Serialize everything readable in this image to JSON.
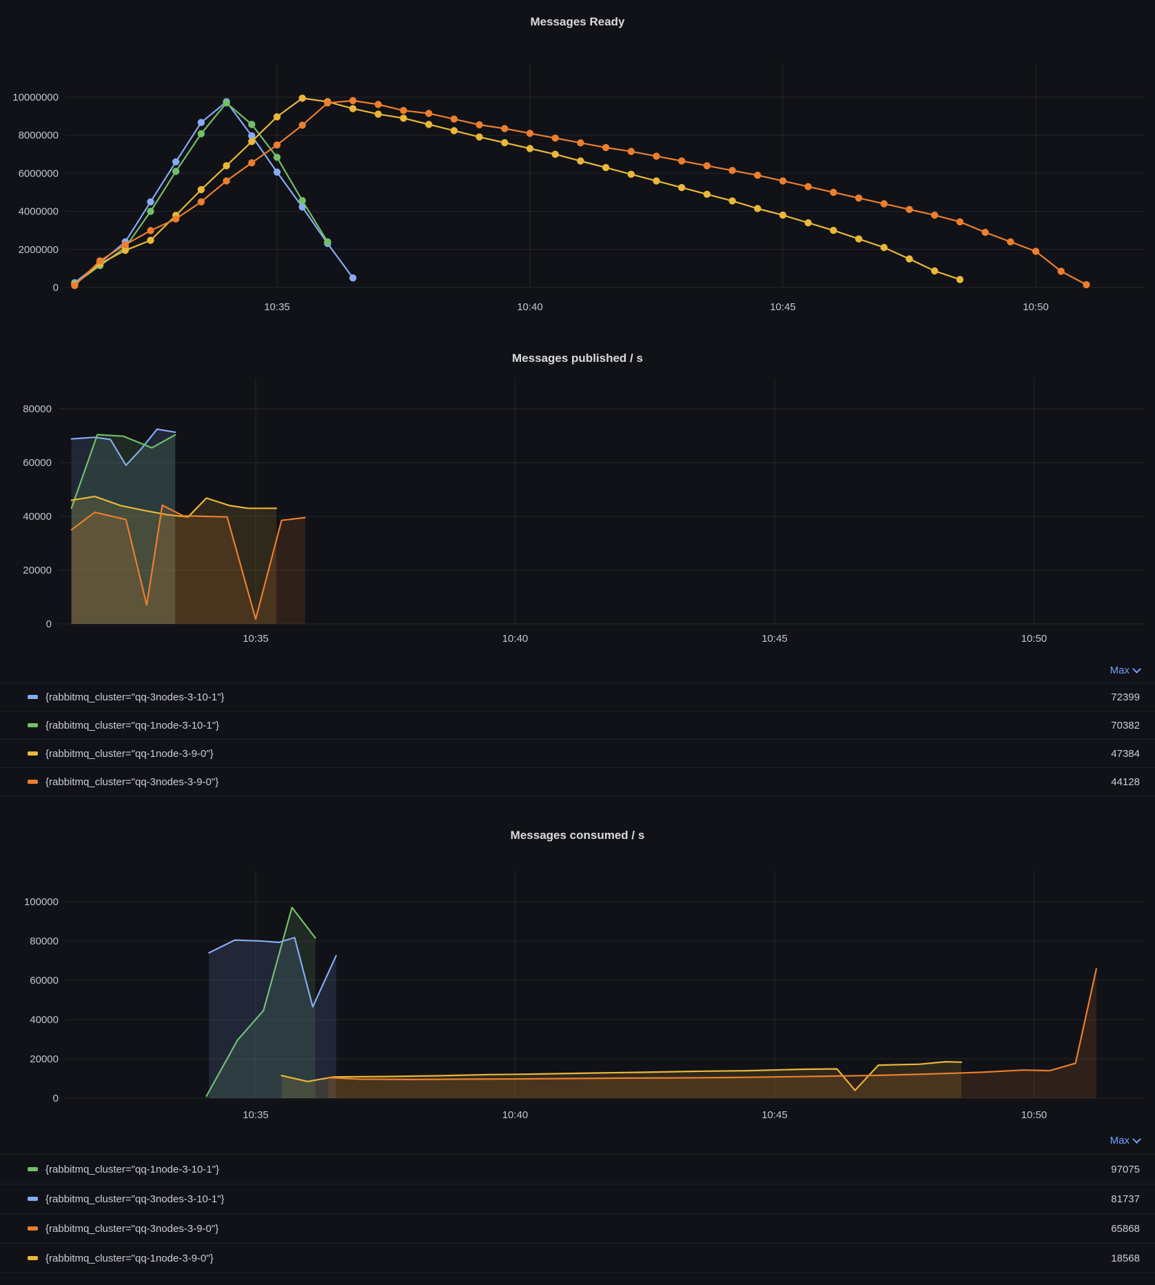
{
  "colors": {
    "background": "#111217",
    "blue": "#86ABF5",
    "green": "#73BF69",
    "yellow": "#EAB839",
    "orange": "#EC7E2E",
    "grid": "rgba(204,204,220,0.10)",
    "axis_text": "#C4C6CF",
    "title_text": "#D9DADE",
    "legend_text": "#CCCCDC",
    "link": "#6E9FFF"
  },
  "chart_data": [
    {
      "type": "line",
      "title": "Messages Ready",
      "x_base": "10:30",
      "x_unit": "minutes_after_10:30",
      "x_ticks": [
        {
          "t": 5,
          "label": "10:35"
        },
        {
          "t": 10,
          "label": "10:40"
        },
        {
          "t": 15,
          "label": "10:45"
        },
        {
          "t": 20,
          "label": "10:50"
        }
      ],
      "y_ticks": [
        0,
        2000000,
        4000000,
        6000000,
        8000000,
        10000000
      ],
      "ylim": [
        0,
        10000000
      ],
      "grid": true,
      "legend_position": "none",
      "show_points": true,
      "fill_opacity": 0,
      "series": [
        {
          "id": "qq-3nodes-3-10-1",
          "color_key": "blue",
          "points": [
            [
              1,
              250000
            ],
            [
              1.5,
              1300000
            ],
            [
              2,
              2400000
            ],
            [
              2.5,
              4500000
            ],
            [
              3,
              6600000
            ],
            [
              3.5,
              8670000
            ],
            [
              4,
              9760000
            ],
            [
              4.5,
              7970000
            ],
            [
              5,
              6060000
            ],
            [
              5.5,
              4230000
            ],
            [
              6,
              2310000
            ],
            [
              6.5,
              500000
            ]
          ]
        },
        {
          "id": "qq-1node-3-10-1",
          "color_key": "green",
          "points": [
            [
              1,
              200000
            ],
            [
              1.5,
              1150000
            ],
            [
              2,
              2100000
            ],
            [
              2.5,
              4000000
            ],
            [
              3,
              6100000
            ],
            [
              3.5,
              8080000
            ],
            [
              4,
              9700000
            ],
            [
              4.5,
              8570000
            ],
            [
              5,
              6840000
            ],
            [
              5.5,
              4560000
            ],
            [
              6,
              2400000
            ]
          ]
        },
        {
          "id": "qq-1node-3-9-0",
          "color_key": "yellow",
          "points": [
            [
              1,
              150000
            ],
            [
              1.5,
              1250000
            ],
            [
              2,
              1950000
            ],
            [
              2.5,
              2480000
            ],
            [
              3,
              3790000
            ],
            [
              3.5,
              5140000
            ],
            [
              4,
              6400000
            ],
            [
              4.5,
              7670000
            ],
            [
              5,
              8970000
            ],
            [
              5.5,
              9950000
            ],
            [
              6,
              9760000
            ],
            [
              6.5,
              9400000
            ],
            [
              7,
              9110000
            ],
            [
              7.5,
              8900000
            ],
            [
              8,
              8570000
            ],
            [
              8.5,
              8240000
            ],
            [
              9,
              7910000
            ],
            [
              9.5,
              7610000
            ],
            [
              10,
              7300000
            ],
            [
              10.5,
              7000000
            ],
            [
              11,
              6650000
            ],
            [
              11.5,
              6300000
            ],
            [
              12,
              5950000
            ],
            [
              12.5,
              5600000
            ],
            [
              13,
              5250000
            ],
            [
              13.5,
              4900000
            ],
            [
              14,
              4550000
            ],
            [
              14.5,
              4150000
            ],
            [
              15,
              3800000
            ],
            [
              15.5,
              3400000
            ],
            [
              16,
              3000000
            ],
            [
              16.5,
              2550000
            ],
            [
              17,
              2100000
            ],
            [
              17.5,
              1500000
            ],
            [
              18,
              870000
            ],
            [
              18.5,
              420000
            ]
          ]
        },
        {
          "id": "qq-3nodes-3-9-0",
          "color_key": "orange",
          "points": [
            [
              1,
              100000
            ],
            [
              1.5,
              1400000
            ],
            [
              2,
              2250000
            ],
            [
              2.5,
              2990000
            ],
            [
              3,
              3600000
            ],
            [
              3.5,
              4500000
            ],
            [
              4,
              5600000
            ],
            [
              4.5,
              6550000
            ],
            [
              5,
              7490000
            ],
            [
              5.5,
              8530000
            ],
            [
              6,
              9700000
            ],
            [
              6.5,
              9820000
            ],
            [
              7,
              9620000
            ],
            [
              7.5,
              9300000
            ],
            [
              8,
              9150000
            ],
            [
              8.5,
              8850000
            ],
            [
              9,
              8550000
            ],
            [
              9.5,
              8350000
            ],
            [
              10,
              8100000
            ],
            [
              10.5,
              7850000
            ],
            [
              11,
              7600000
            ],
            [
              11.5,
              7350000
            ],
            [
              12,
              7150000
            ],
            [
              12.5,
              6900000
            ],
            [
              13,
              6650000
            ],
            [
              13.5,
              6400000
            ],
            [
              14,
              6150000
            ],
            [
              14.5,
              5900000
            ],
            [
              15,
              5600000
            ],
            [
              15.5,
              5300000
            ],
            [
              16,
              5000000
            ],
            [
              16.5,
              4700000
            ],
            [
              17,
              4400000
            ],
            [
              17.5,
              4100000
            ],
            [
              18,
              3800000
            ],
            [
              18.5,
              3450000
            ],
            [
              19,
              2900000
            ],
            [
              19.5,
              2400000
            ],
            [
              20,
              1900000
            ],
            [
              20.5,
              850000
            ],
            [
              21,
              150000
            ]
          ]
        }
      ]
    },
    {
      "type": "area",
      "title": "Messages published / s",
      "x_base": "10:30",
      "x_unit": "minutes_after_10:30",
      "x_ticks": [
        {
          "t": 5,
          "label": "10:35"
        },
        {
          "t": 10,
          "label": "10:40"
        },
        {
          "t": 15,
          "label": "10:45"
        },
        {
          "t": 20,
          "label": "10:50"
        }
      ],
      "y_ticks": [
        0,
        20000,
        40000,
        60000,
        80000
      ],
      "ylim": [
        0,
        80000
      ],
      "grid": true,
      "legend_position": "bottom-table",
      "show_points": false,
      "fill_opacity": 0.14,
      "series": [
        {
          "id": "qq-3nodes-3-10-1",
          "color_key": "blue",
          "points": [
            [
              1.45,
              68800
            ],
            [
              1.9,
              69400
            ],
            [
              2.2,
              68600
            ],
            [
              2.5,
              59000
            ],
            [
              2.8,
              65200
            ],
            [
              3.1,
              72399
            ],
            [
              3.45,
              71300
            ]
          ]
        },
        {
          "id": "qq-1node-3-10-1",
          "color_key": "green",
          "points": [
            [
              1.45,
              43000
            ],
            [
              1.95,
              70382
            ],
            [
              2.45,
              69800
            ],
            [
              3.0,
              65500
            ],
            [
              3.45,
              70300
            ]
          ]
        },
        {
          "id": "qq-1node-3-9-0",
          "color_key": "yellow",
          "points": [
            [
              1.45,
              46000
            ],
            [
              1.9,
              47384
            ],
            [
              2.4,
              44000
            ],
            [
              2.9,
              42000
            ],
            [
              3.3,
              40600
            ],
            [
              3.7,
              39800
            ],
            [
              4.05,
              46800
            ],
            [
              4.5,
              44000
            ],
            [
              4.85,
              43000
            ],
            [
              5.4,
              43000
            ]
          ]
        },
        {
          "id": "qq-3nodes-3-9-0",
          "color_key": "orange",
          "points": [
            [
              1.45,
              35000
            ],
            [
              1.9,
              41500
            ],
            [
              2.5,
              38800
            ],
            [
              2.9,
              7000
            ],
            [
              3.2,
              44128
            ],
            [
              3.6,
              40200
            ],
            [
              4.0,
              40000
            ],
            [
              4.45,
              39800
            ],
            [
              5.0,
              1800
            ],
            [
              5.5,
              38500
            ],
            [
              5.95,
              39500
            ]
          ]
        }
      ]
    },
    {
      "type": "area",
      "title": "Messages consumed / s",
      "x_base": "10:30",
      "x_unit": "minutes_after_10:30",
      "x_ticks": [
        {
          "t": 5,
          "label": "10:35"
        },
        {
          "t": 10,
          "label": "10:40"
        },
        {
          "t": 15,
          "label": "10:45"
        },
        {
          "t": 20,
          "label": "10:50"
        }
      ],
      "y_ticks": [
        0,
        20000,
        40000,
        60000,
        80000,
        100000
      ],
      "ylim": [
        0,
        100000
      ],
      "grid": true,
      "legend_position": "bottom-table",
      "show_points": false,
      "fill_opacity": 0.14,
      "series": [
        {
          "id": "qq-1node-3-10-1",
          "color_key": "green",
          "points": [
            [
              4.05,
              1000
            ],
            [
              4.65,
              29500
            ],
            [
              5.15,
              44600
            ],
            [
              5.7,
              97075
            ],
            [
              6.15,
              81500
            ]
          ]
        },
        {
          "id": "qq-3nodes-3-10-1",
          "color_key": "blue",
          "points": [
            [
              4.1,
              74000
            ],
            [
              4.6,
              80500
            ],
            [
              5.1,
              80000
            ],
            [
              5.45,
              79300
            ],
            [
              5.75,
              81737
            ],
            [
              6.1,
              46500
            ],
            [
              6.55,
              72500
            ]
          ]
        },
        {
          "id": "qq-1node-3-9-0",
          "color_key": "yellow",
          "points": [
            [
              5.5,
              11500
            ],
            [
              6.0,
              8500
            ],
            [
              6.5,
              10800
            ],
            [
              7.5,
              11000
            ],
            [
              8.5,
              11400
            ],
            [
              9.5,
              12000
            ],
            [
              10.5,
              12300
            ],
            [
              11.5,
              12800
            ],
            [
              12.5,
              13200
            ],
            [
              13.5,
              13700
            ],
            [
              14.5,
              14000
            ],
            [
              15.5,
              14700
            ],
            [
              16.2,
              14900
            ],
            [
              16.55,
              4000
            ],
            [
              17,
              16800
            ],
            [
              17.8,
              17300
            ],
            [
              18.3,
              18568
            ],
            [
              18.6,
              18300
            ]
          ]
        },
        {
          "id": "qq-3nodes-3-9-0",
          "color_key": "orange",
          "points": [
            [
              6.4,
              10500
            ],
            [
              7,
              9700
            ],
            [
              8,
              9500
            ],
            [
              9,
              9700
            ],
            [
              10,
              9800
            ],
            [
              11,
              10000
            ],
            [
              12,
              10200
            ],
            [
              13,
              10300
            ],
            [
              14,
              10500
            ],
            [
              15,
              10800
            ],
            [
              16,
              11200
            ],
            [
              17,
              11600
            ],
            [
              18,
              12300
            ],
            [
              19,
              13200
            ],
            [
              19.8,
              14300
            ],
            [
              20.3,
              14000
            ],
            [
              20.8,
              17800
            ],
            [
              21.2,
              65868
            ]
          ]
        }
      ]
    }
  ],
  "legends": [
    {
      "header": "Max",
      "rows": [
        {
          "color_key": "blue",
          "label": "{rabbitmq_cluster=\"qq-3nodes-3-10-1\"}",
          "value": "72399"
        },
        {
          "color_key": "green",
          "label": "{rabbitmq_cluster=\"qq-1node-3-10-1\"}",
          "value": "70382"
        },
        {
          "color_key": "yellow",
          "label": "{rabbitmq_cluster=\"qq-1node-3-9-0\"}",
          "value": "47384"
        },
        {
          "color_key": "orange",
          "label": "{rabbitmq_cluster=\"qq-3nodes-3-9-0\"}",
          "value": "44128"
        }
      ]
    },
    {
      "header": "Max",
      "rows": [
        {
          "color_key": "green",
          "label": "{rabbitmq_cluster=\"qq-1node-3-10-1\"}",
          "value": "97075"
        },
        {
          "color_key": "blue",
          "label": "{rabbitmq_cluster=\"qq-3nodes-3-10-1\"}",
          "value": "81737"
        },
        {
          "color_key": "orange",
          "label": "{rabbitmq_cluster=\"qq-3nodes-3-9-0\"}",
          "value": "65868"
        },
        {
          "color_key": "yellow",
          "label": "{rabbitmq_cluster=\"qq-1node-3-9-0\"}",
          "value": "18568"
        }
      ]
    }
  ]
}
